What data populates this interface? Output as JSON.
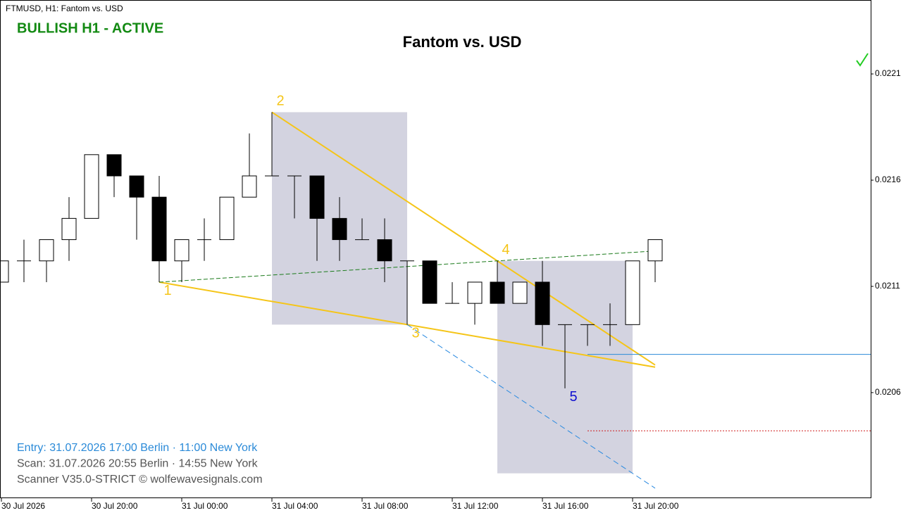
{
  "chart_data": {
    "type": "candlestick",
    "header": "FTMUSD, H1:  Fantom vs. USD",
    "status": "BULLISH H1 - ACTIVE",
    "status_color": "#138a13",
    "title": "Fantom vs. USD",
    "categories": [
      "30 Jul 2026",
      null,
      null,
      null,
      "30 Jul 20:00",
      null,
      null,
      null,
      "31 Jul 00:00",
      null,
      null,
      null,
      "31 Jul 04:00",
      null,
      null,
      null,
      "31 Jul 08:00",
      null,
      null,
      null,
      "31 Jul 12:00",
      null,
      null,
      null,
      "31 Jul 16:00",
      null,
      null,
      null,
      "31 Jul 20:00",
      null
    ],
    "open": [
      0.02112,
      0.02122,
      0.02122,
      0.02132,
      0.02142,
      0.02172,
      0.02162,
      0.02152,
      0.02122,
      0.02132,
      0.02132,
      0.02152,
      0.02162,
      0.02162,
      0.02162,
      0.02142,
      0.02132,
      0.02132,
      0.02122,
      0.02122,
      0.02102,
      0.02102,
      0.02112,
      0.02102,
      0.02112,
      0.02092,
      0.02092,
      0.02092,
      0.02092,
      0.02122
    ],
    "high": [
      0.02122,
      0.02132,
      0.02132,
      0.02152,
      0.02172,
      0.02172,
      0.02162,
      0.02162,
      0.02132,
      0.02142,
      0.02152,
      0.02182,
      0.02192,
      0.02162,
      0.02162,
      0.02152,
      0.02142,
      0.02142,
      0.02122,
      0.02122,
      0.02112,
      0.02112,
      0.02122,
      0.02112,
      0.02122,
      0.02092,
      0.02092,
      0.02102,
      0.02122,
      0.02132
    ],
    "low": [
      0.02112,
      0.02112,
      0.02112,
      0.02122,
      0.02142,
      0.02152,
      0.02132,
      0.02112,
      0.02112,
      0.02122,
      0.02132,
      0.02152,
      0.02162,
      0.02142,
      0.02122,
      0.02122,
      0.02132,
      0.02112,
      0.02092,
      0.02102,
      0.02102,
      0.02092,
      0.02102,
      0.02102,
      0.02082,
      0.02062,
      0.02082,
      0.02082,
      0.02092,
      0.02112
    ],
    "close": [
      0.02122,
      0.02122,
      0.02132,
      0.02142,
      0.02172,
      0.02162,
      0.02152,
      0.02122,
      0.02132,
      0.02132,
      0.02152,
      0.02162,
      0.02162,
      0.02162,
      0.02142,
      0.02132,
      0.02132,
      0.02122,
      0.02122,
      0.02102,
      0.02102,
      0.02112,
      0.02102,
      0.02112,
      0.02092,
      0.02092,
      0.02092,
      0.02092,
      0.02122,
      0.02132
    ],
    "ylim": [
      0.020103,
      0.022448
    ],
    "yticks": [
      0.0206,
      0.0211,
      0.0216,
      0.0221
    ],
    "up_color": "#ffffff",
    "down_color": "#000000",
    "wave_points": [
      {
        "label": "1",
        "index": 7,
        "price": 0.02112,
        "color": "#f5c518"
      },
      {
        "label": "2",
        "index": 12,
        "price": 0.02192,
        "color": "#f5c518"
      },
      {
        "label": "3",
        "index": 18,
        "price": 0.02092,
        "color": "#f5c518"
      },
      {
        "label": "4",
        "index": 22,
        "price": 0.02122,
        "color": "#f5c518"
      },
      {
        "label": "5",
        "index": 25,
        "price": 0.02062,
        "color": "#1010d0"
      }
    ],
    "wave_color": "#f5c518",
    "target_line_color": "#1a7a1a",
    "channel_color": "#2a8ae0",
    "zone_color": "#d3d3e0",
    "levels": [
      {
        "price": 0.02078,
        "color": "#2a8ad8",
        "dash": "none"
      },
      {
        "price": 0.02042,
        "color": "#d02020",
        "dash": "2 2"
      }
    ],
    "info": [
      {
        "text": "Entry: 31.07.2026  17:00 Berlin · 11:00 New York",
        "color": "#2a8ad8"
      },
      {
        "text": "Scan:  31.07.2026  20:55 Berlin · 14:55 New York",
        "color": "#555555"
      },
      {
        "text": "Scanner V35.0-STRICT   © wolfewavesignals.com",
        "color": "#555555"
      }
    ]
  }
}
